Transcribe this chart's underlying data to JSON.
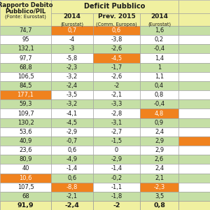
{
  "col0_header_lines": [
    "Rapporto Debito",
    "Pubblico/PIL",
    "(Fonte: Eurostat)"
  ],
  "deficit_header": "Deficit Pubblico",
  "col1_header": [
    "2014",
    "(Eurostat)"
  ],
  "col2_header": [
    "Prev. 2015",
    "(Comm. Europea)"
  ],
  "col3_header": [
    "2014",
    "(Eurostat)"
  ],
  "rows": [
    {
      "col0": "74,7",
      "col1": "0,7",
      "col2": "0,6",
      "col3": "1,6",
      "col4": ""
    },
    {
      "col0": "95",
      "col1": "-4",
      "col2": "-3,8",
      "col3": "0,2",
      "col4": ""
    },
    {
      "col0": "132,1",
      "col1": "-3",
      "col2": "-2,6",
      "col3": "-0,4",
      "col4": ""
    },
    {
      "col0": "97,7",
      "col1": "-5,8",
      "col2": "-4,5",
      "col3": "1,4",
      "col4": ""
    },
    {
      "col0": "68,8",
      "col1": "-2,3",
      "col2": "-1,7",
      "col3": "1",
      "col4": ""
    },
    {
      "col0": "106,5",
      "col1": "-3,2",
      "col2": "-2,6",
      "col3": "1,1",
      "col4": ""
    },
    {
      "col0": "84,5",
      "col1": "-2,4",
      "col2": "-2",
      "col3": "0,4",
      "col4": ""
    },
    {
      "col0": "177,1",
      "col1": "-3,5",
      "col2": "-2,1",
      "col3": "0,8",
      "col4": ""
    },
    {
      "col0": "59,3",
      "col1": "-3,2",
      "col2": "-3,3",
      "col3": "-0,4",
      "col4": ""
    },
    {
      "col0": "109,7",
      "col1": "-4,1",
      "col2": "-2,8",
      "col3": "4,8",
      "col4": ""
    },
    {
      "col0": "130,2",
      "col1": "-4,5",
      "col2": "-3,1",
      "col3": "0,9",
      "col4": ""
    },
    {
      "col0": "53,6",
      "col1": "-2,9",
      "col2": "-2,7",
      "col3": "2,4",
      "col4": ""
    },
    {
      "col0": "40,9",
      "col1": "-0,7",
      "col2": "-1,5",
      "col3": "2,9",
      "col4": ""
    },
    {
      "col0": "23,6",
      "col1": "0,6",
      "col2": "0",
      "col3": "2,9",
      "col4": ""
    },
    {
      "col0": "80,9",
      "col1": "-4,9",
      "col2": "-2,9",
      "col3": "2,6",
      "col4": ""
    },
    {
      "col0": "40",
      "col1": "-1,4",
      "col2": "-1,4",
      "col3": "2,4",
      "col4": ""
    },
    {
      "col0": "10,6",
      "col1": "0,6",
      "col2": "-0,2",
      "col3": "2,1",
      "col4": ""
    },
    {
      "col0": "107,5",
      "col1": "-8,8",
      "col2": "-1,1",
      "col3": "-2,3",
      "col4": ""
    },
    {
      "col0": "68",
      "col1": "-2,1",
      "col2": "-1,8",
      "col3": "3,5",
      "col4": ""
    }
  ],
  "footer": {
    "col0": "91,9",
    "col1": "-2,4",
    "col2": "-2",
    "col3": "0,8",
    "col4": ""
  },
  "col0_orange_rows": [
    7,
    16
  ],
  "col1_orange_cells": [
    0,
    17
  ],
  "col2_orange_cells": [
    0,
    3
  ],
  "col3_orange_cells": [
    9,
    17
  ],
  "col4_orange_rows": [
    12
  ],
  "orange": "#f0821e",
  "green_even": "#c5dfa5",
  "green_odd": "#e8f4d0",
  "white": "#ffffff",
  "yellow_header": "#f0f0a0",
  "yellow_footer": "#f0f0a0",
  "border_color": "#999999",
  "text_dark": "#1a1a1a",
  "text_white": "#ffffff"
}
